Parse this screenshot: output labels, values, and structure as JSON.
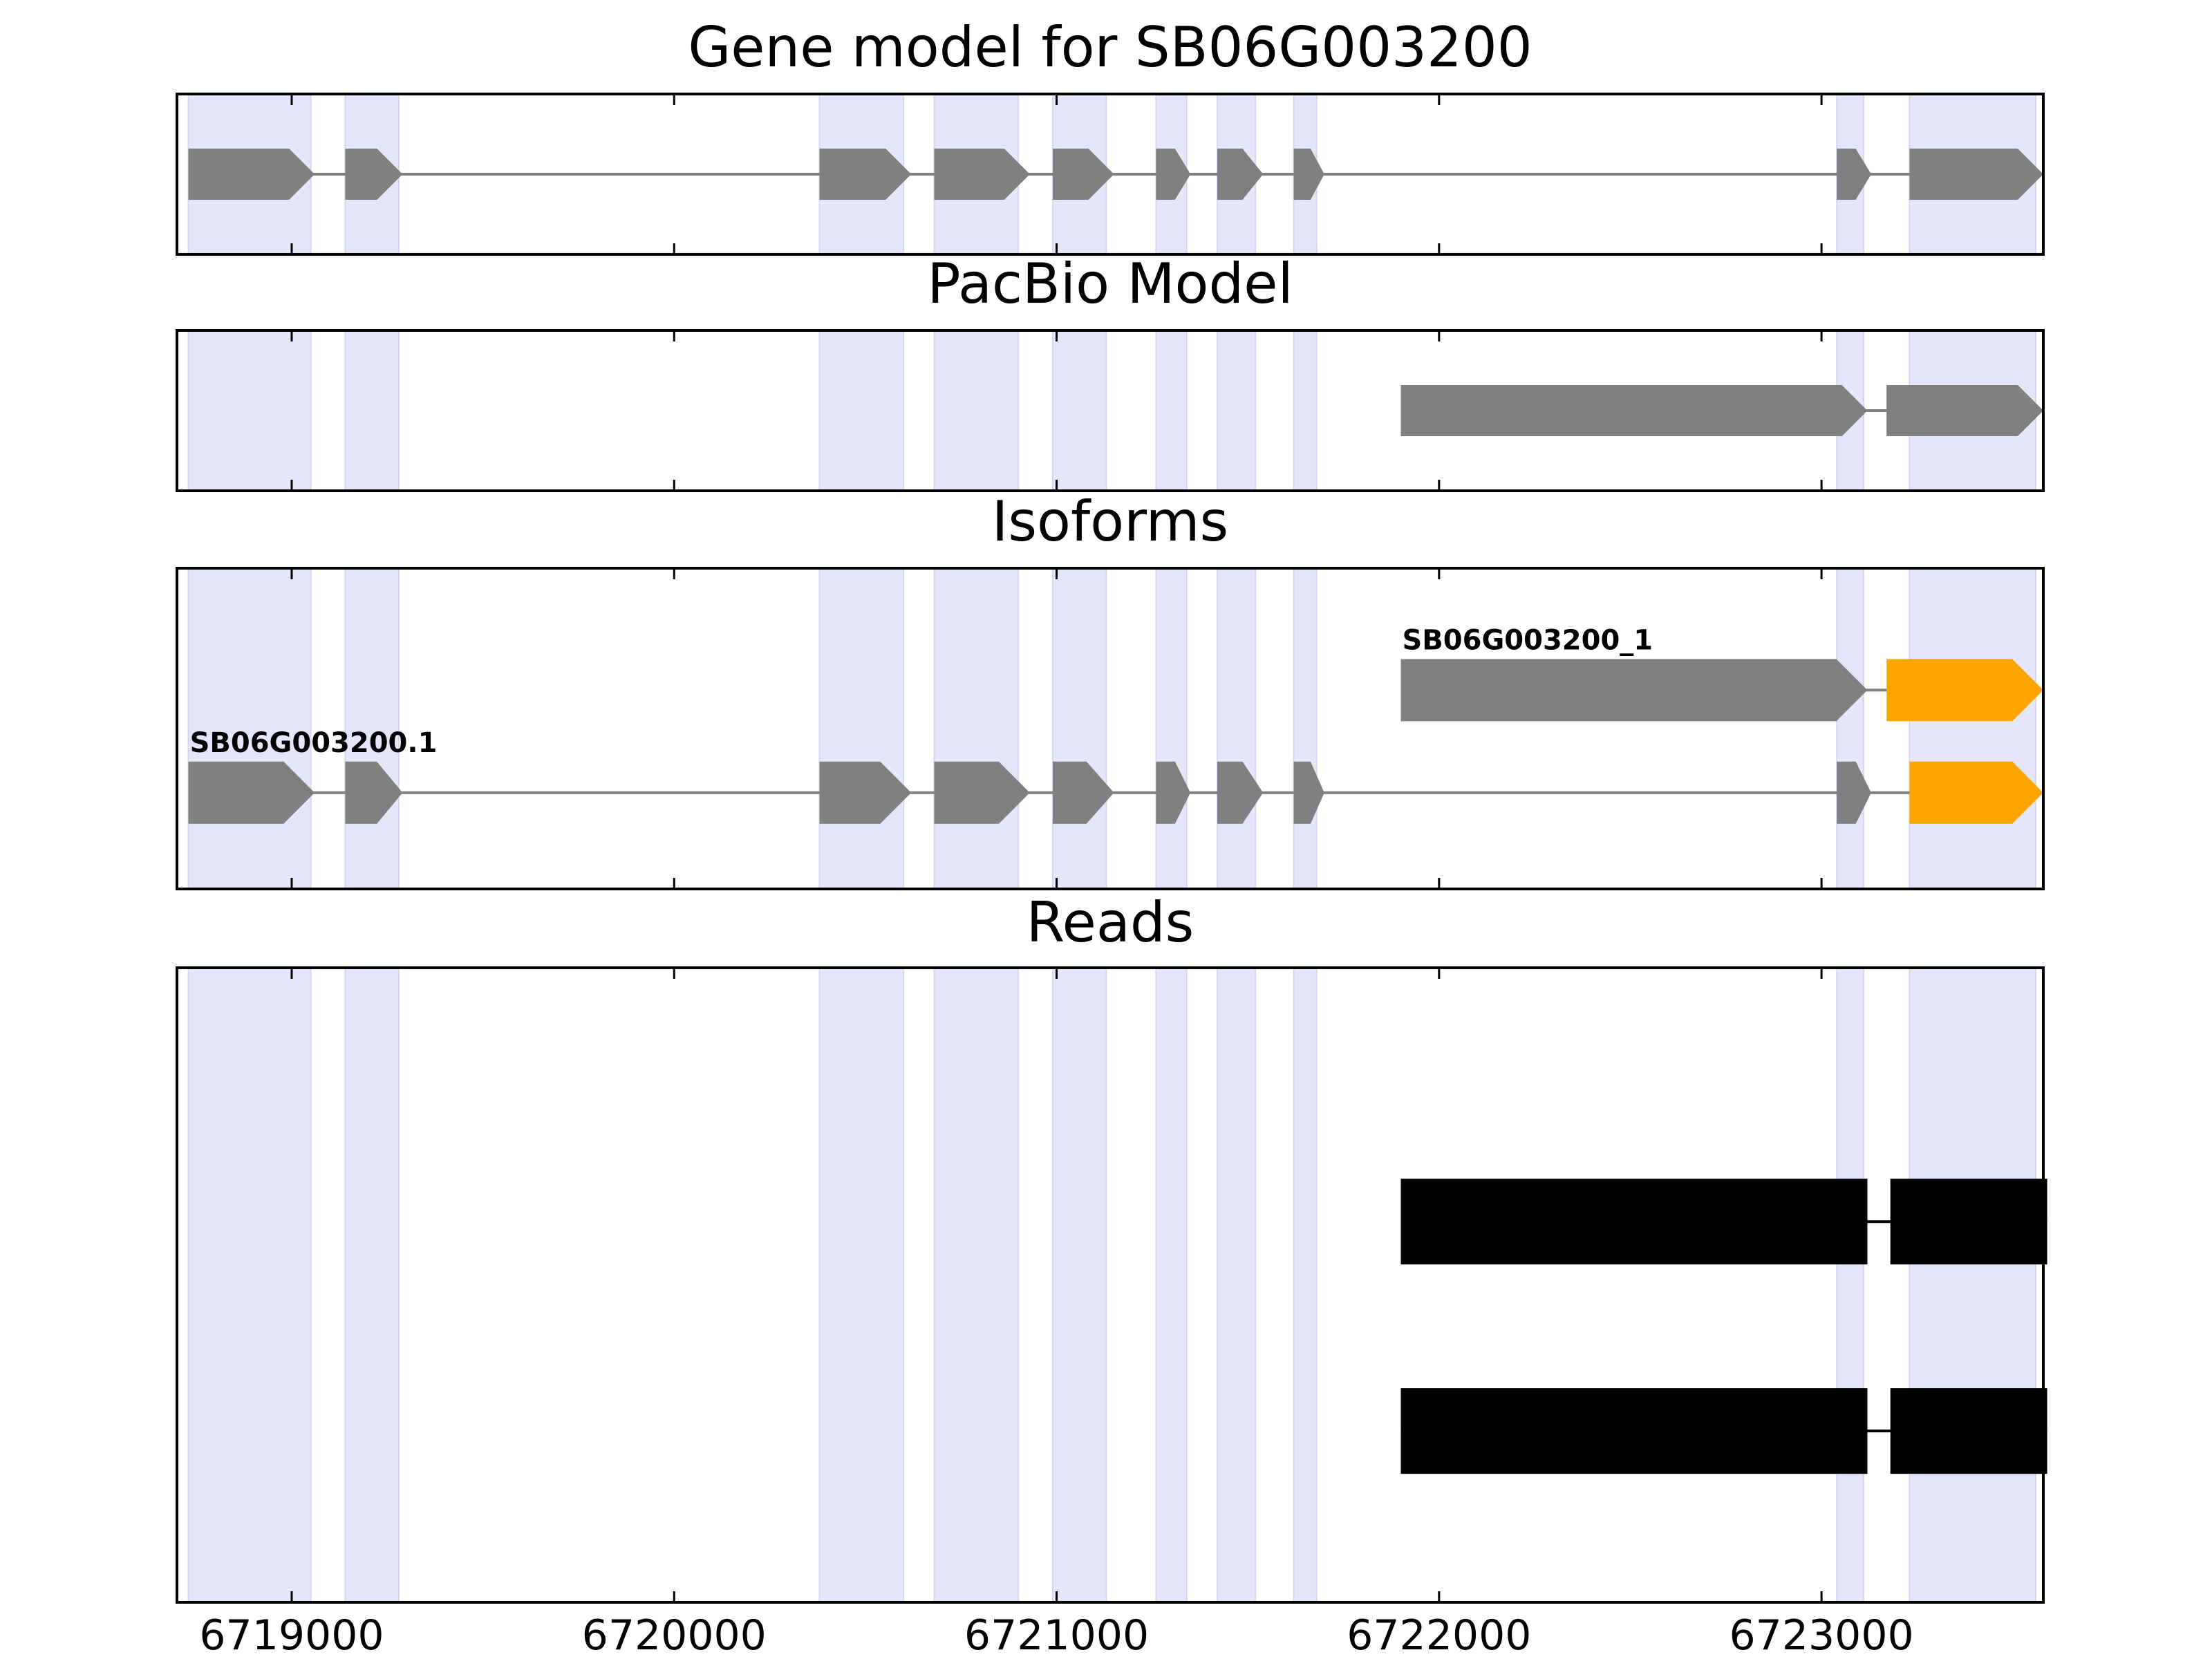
{
  "chart_data": {
    "type": "gene-track",
    "x_range": [
      6718700,
      6723580
    ],
    "xticks": [
      6719000,
      6720000,
      6721000,
      6722000,
      6723000
    ],
    "xtick_labels": [
      "6719000",
      "6720000",
      "6721000",
      "6722000",
      "6723000"
    ],
    "highlight_regions": [
      [
        6718730,
        6719050
      ],
      [
        6719140,
        6719280
      ],
      [
        6720380,
        6720600
      ],
      [
        6720680,
        6720900
      ],
      [
        6720990,
        6721130
      ],
      [
        6721260,
        6721340
      ],
      [
        6721420,
        6721520
      ],
      [
        6721620,
        6721680
      ],
      [
        6723040,
        6723110
      ],
      [
        6723230,
        6723560
      ]
    ],
    "panels": [
      {
        "title": "Gene model for SB06G003200",
        "tracks": [
          {
            "level": 0.5,
            "color": "#808080",
            "label": "",
            "exons": [
              [
                6718730,
                6719060
              ],
              [
                6719140,
                6719290
              ],
              [
                6720380,
                6720620
              ],
              [
                6720680,
                6720930
              ],
              [
                6720990,
                6721150
              ],
              [
                6721260,
                6721350
              ],
              [
                6721420,
                6721540
              ],
              [
                6721620,
                6721700
              ],
              [
                6723040,
                6723130
              ],
              [
                6723230,
                6723580
              ]
            ]
          }
        ]
      },
      {
        "title": "PacBio Model",
        "tracks": [
          {
            "level": 0.5,
            "color": "#808080",
            "label": "",
            "exons": [
              [
                6721900,
                6723120
              ],
              [
                6723170,
                6723580
              ]
            ]
          }
        ]
      },
      {
        "title": "Isoforms",
        "tracks": [
          {
            "level": 0.62,
            "color": "#808080",
            "last_exon_color": "#FFA500",
            "label": "SB06G003200_1",
            "exons": [
              [
                6721900,
                6723120
              ],
              [
                6723170,
                6723580
              ]
            ]
          },
          {
            "level": 0.3,
            "color": "#808080",
            "last_exon_color": "#FFA500",
            "label": "SB06G003200.1",
            "exons": [
              [
                6718730,
                6719060
              ],
              [
                6719140,
                6719290
              ],
              [
                6720380,
                6720620
              ],
              [
                6720680,
                6720930
              ],
              [
                6720990,
                6721150
              ],
              [
                6721260,
                6721350
              ],
              [
                6721420,
                6721540
              ],
              [
                6721620,
                6721700
              ],
              [
                6723040,
                6723130
              ],
              [
                6723230,
                6723580
              ]
            ]
          }
        ]
      },
      {
        "title": "Reads",
        "tracks": [
          {
            "level": 0.6,
            "color": "#000000",
            "label": "",
            "shape": "box",
            "exons": [
              [
                6721900,
                6723120
              ],
              [
                6723180,
                6723590
              ]
            ]
          },
          {
            "level": 0.27,
            "color": "#000000",
            "label": "",
            "shape": "box",
            "exons": [
              [
                6721900,
                6723120
              ],
              [
                6723180,
                6723590
              ]
            ]
          }
        ]
      }
    ]
  }
}
